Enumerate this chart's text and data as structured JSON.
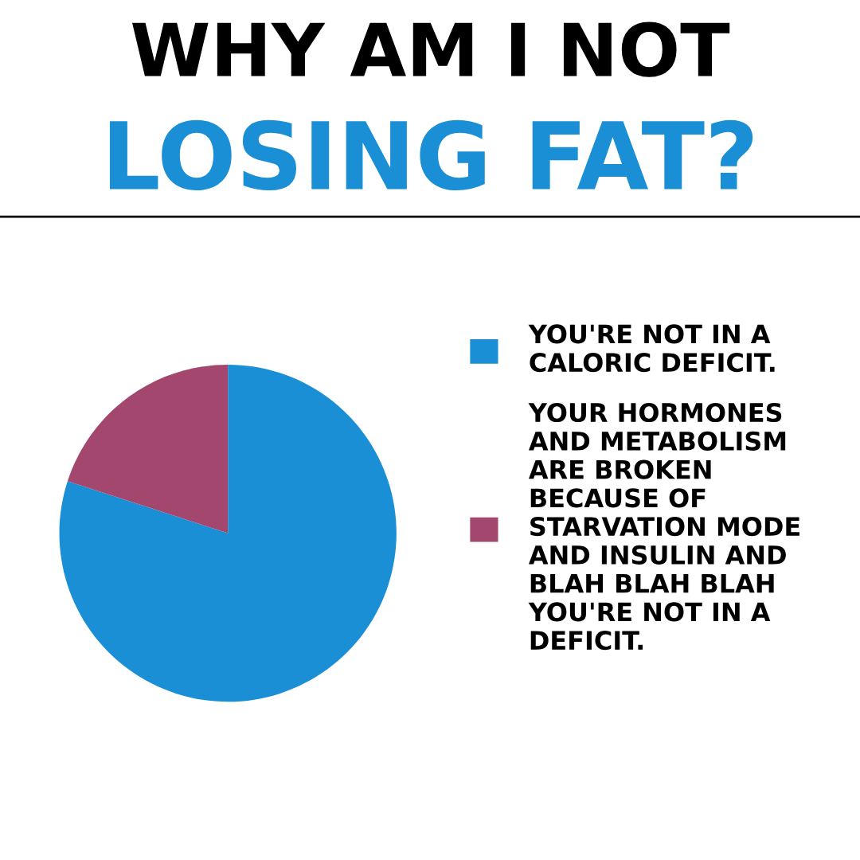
{
  "chart_data": {
    "type": "pie",
    "title": "WHY AM I NOT",
    "subtitle": "LOSING FAT?",
    "categories": [
      "YOU'RE NOT IN A\nCALORIC DEFICIT.",
      "YOUR HORMONES\nAND METABOLISM\nARE BROKEN\nBECAUSE OF\nSTARVATION MODE\nAND INSULIN AND\nBLAH BLAH BLAH\nYOU'RE NOT IN A\nDEFICIT."
    ],
    "values": [
      80,
      20
    ],
    "colors": [
      "#1a8fd5",
      "#a3476f"
    ],
    "legend": "right"
  }
}
